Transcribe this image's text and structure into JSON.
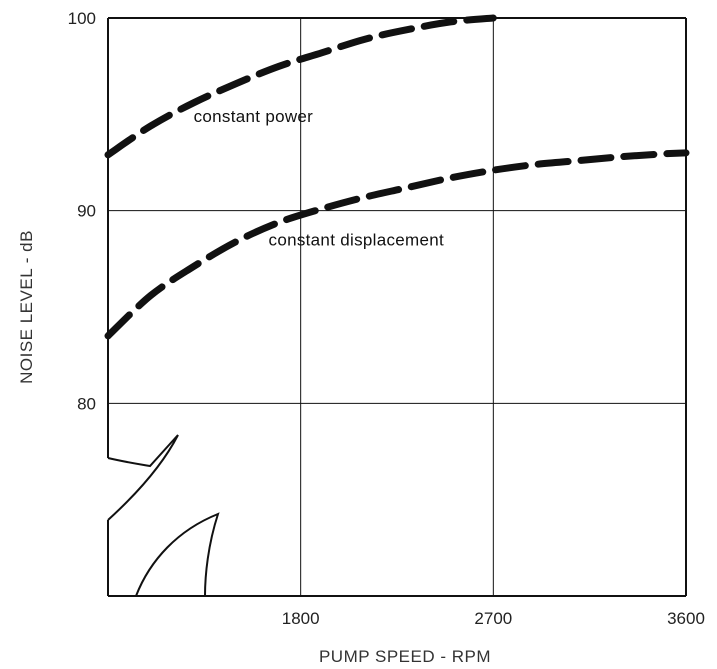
{
  "chart_data": {
    "type": "line",
    "xlabel": "PUMP SPEED - RPM",
    "ylabel": "NOISE LEVEL - dB",
    "xlim": [
      900,
      3600
    ],
    "ylim": [
      70,
      100
    ],
    "x_ticks": [
      {
        "value": 1800,
        "label": "1800"
      },
      {
        "value": 2700,
        "label": "2700"
      },
      {
        "value": 3600,
        "label": "3600"
      }
    ],
    "y_ticks": [
      {
        "value": 80,
        "label": "80"
      },
      {
        "value": 90,
        "label": "90"
      },
      {
        "value": 100,
        "label": "100"
      }
    ],
    "grid": true,
    "axis_break": true,
    "series": [
      {
        "name": "constant power",
        "label_position": {
          "x": 1300,
          "y": 94.6
        },
        "x": [
          900,
          1100,
          1300,
          1500,
          1700,
          1900,
          2100,
          2300,
          2500,
          2700
        ],
        "y": [
          92.9,
          94.4,
          95.6,
          96.6,
          97.5,
          98.2,
          98.9,
          99.4,
          99.8,
          100.0
        ]
      },
      {
        "name": "constant displacement",
        "label_position": {
          "x": 1650,
          "y": 88.2
        },
        "x": [
          900,
          1100,
          1300,
          1500,
          1700,
          1900,
          2100,
          2300,
          2500,
          2700,
          2900,
          3100,
          3300,
          3500,
          3600
        ],
        "y": [
          83.5,
          85.6,
          87.1,
          88.4,
          89.4,
          90.1,
          90.7,
          91.2,
          91.7,
          92.1,
          92.4,
          92.6,
          92.8,
          92.95,
          93.0
        ]
      }
    ]
  }
}
